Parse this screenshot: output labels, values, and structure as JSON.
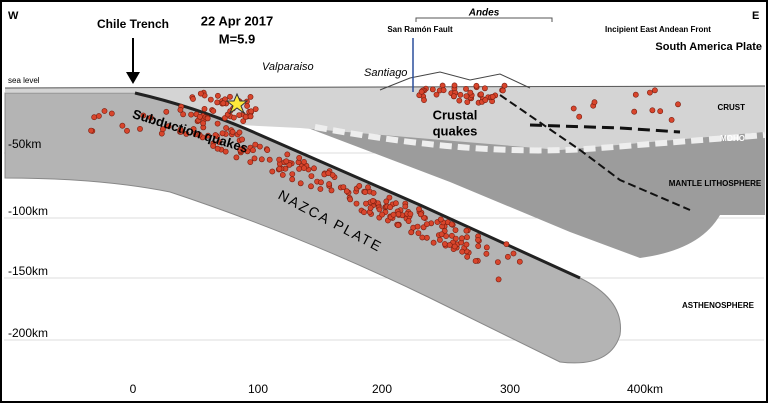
{
  "header": {
    "west": "W",
    "east": "E",
    "plate": "South America Plate"
  },
  "labels": {
    "trench": "Chile Trench",
    "date": "22 Apr 2017",
    "magnitude": "M=5.9",
    "andes": "Andes",
    "fault": "San Ramón Fault",
    "front": "Incipient East Andean Front",
    "sea_level": "sea level",
    "valparaiso": "Valparaiso",
    "santiago": "Santiago",
    "crust": "CRUST",
    "moho": "MOHO",
    "crustal_quakes": [
      "Crustal",
      "quakes"
    ],
    "subduction_quakes": "Subduction quakes",
    "mantle": "MANTLE LITHOSPHERE",
    "nazca": "NAZCA PLATE",
    "asthenosphere": "ASTHENOSPHERE"
  },
  "depth_axis": [
    "-50km",
    "-100km",
    "-150km",
    "-200km"
  ],
  "distance_axis": [
    "0",
    "100",
    "200",
    "300",
    "400km"
  ]
}
